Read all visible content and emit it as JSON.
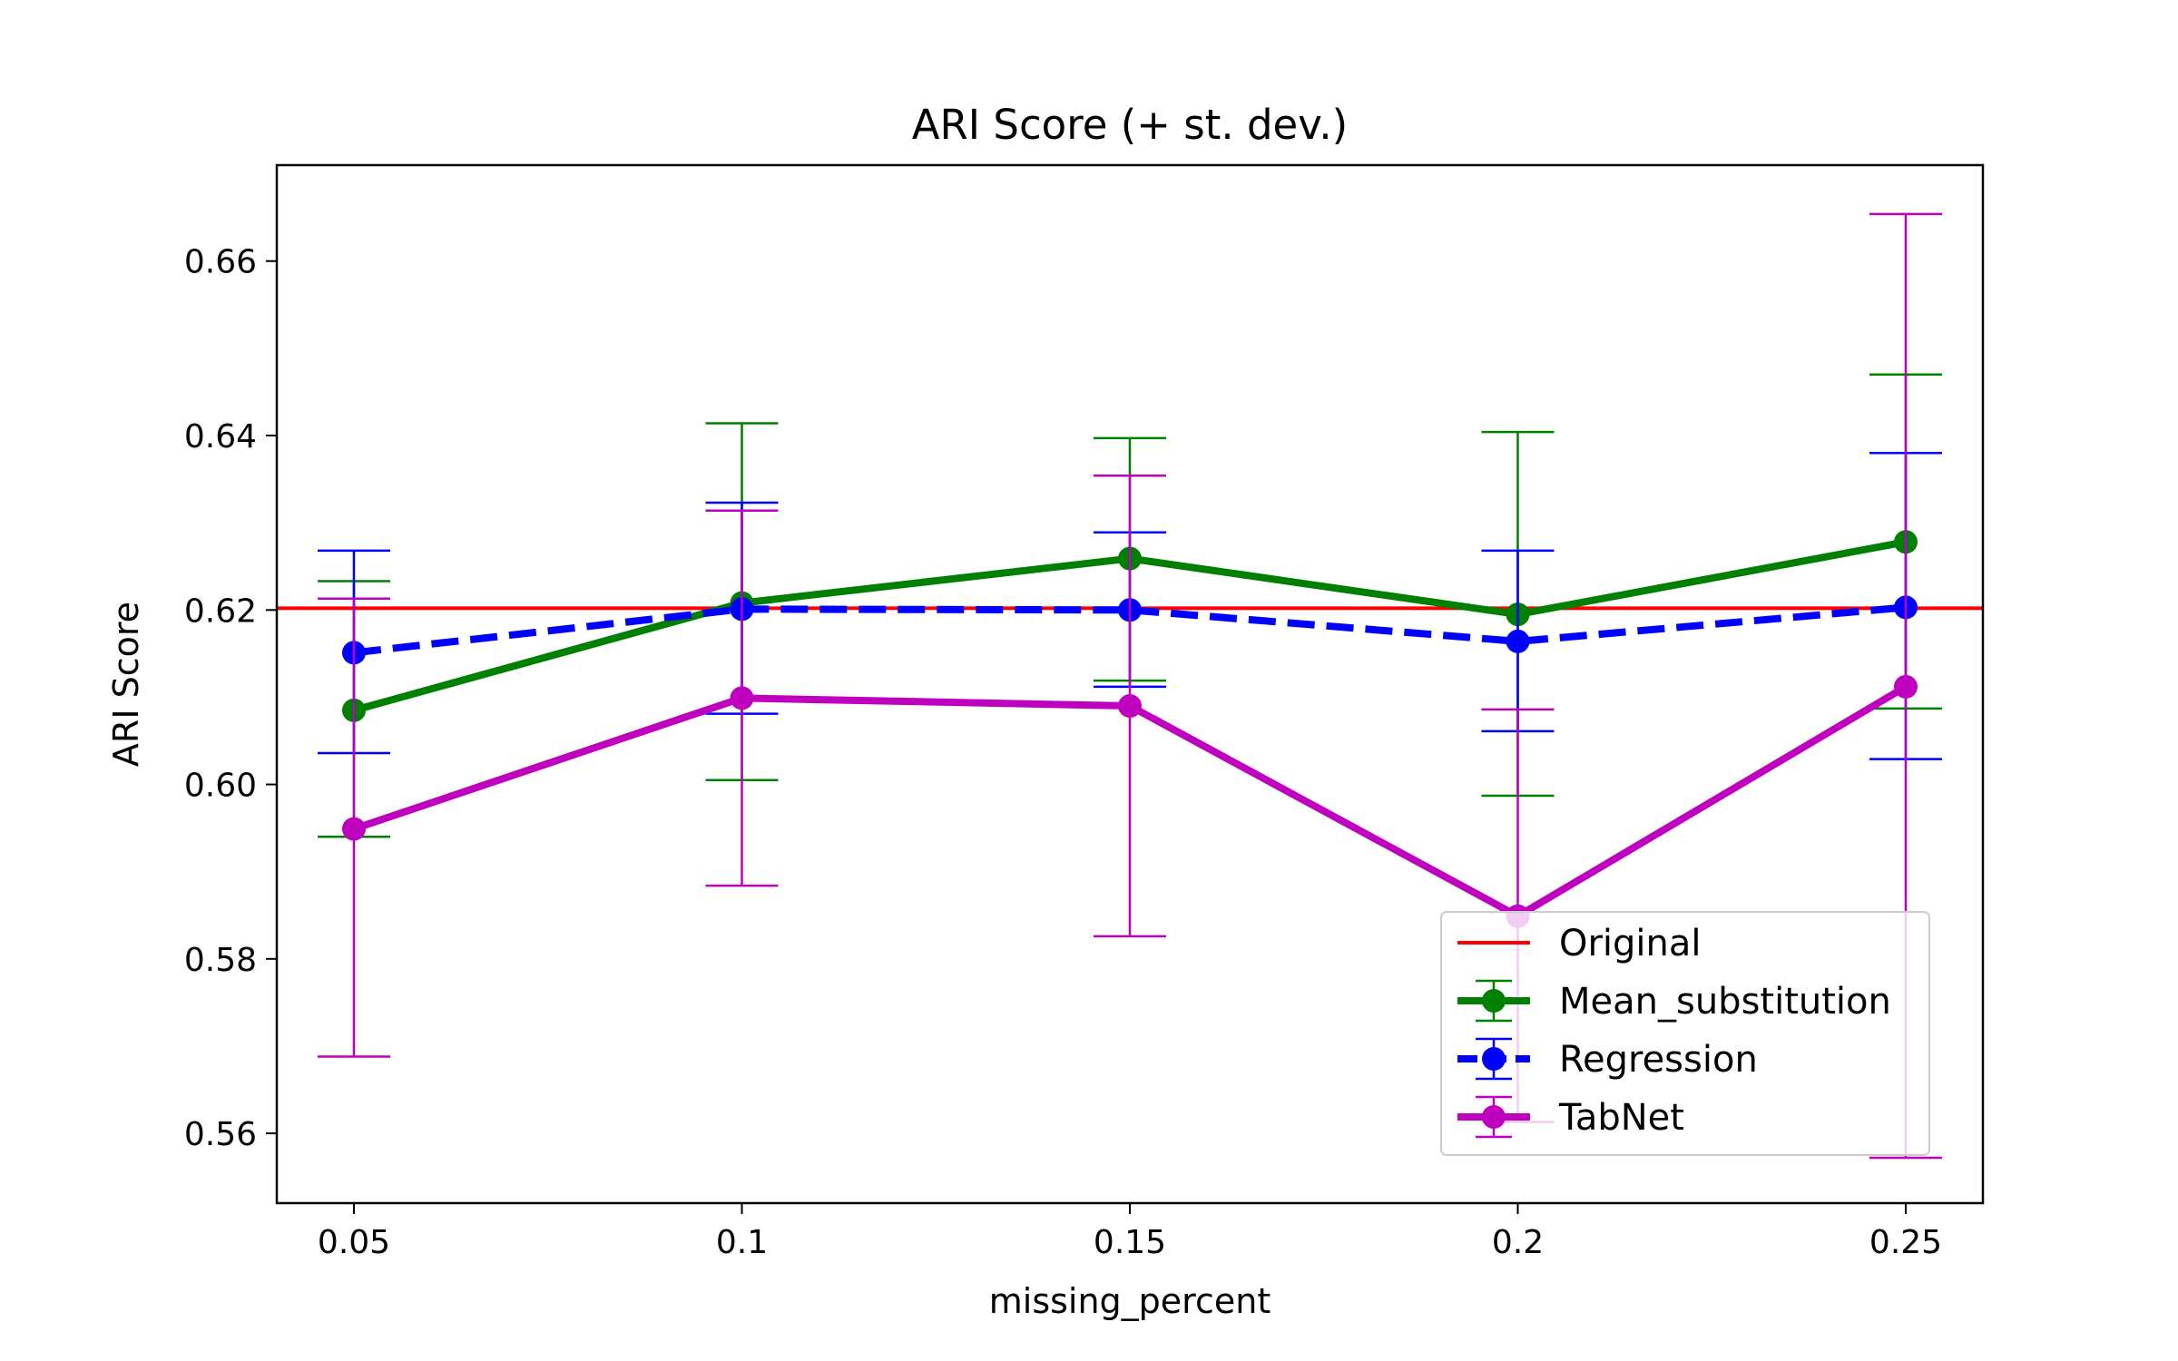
{
  "chart_data": {
    "type": "line",
    "title": "ARI Score (+ st. dev.)",
    "xlabel": "missing_percent",
    "ylabel": "ARI Score",
    "x": [
      0.05,
      0.1,
      0.15,
      0.2,
      0.25
    ],
    "x_tick_labels": [
      "0.05",
      "0.1",
      "0.15",
      "0.2",
      "0.25"
    ],
    "yticks": [
      0.56,
      0.58,
      0.6,
      0.62,
      0.64,
      0.66
    ],
    "y_tick_labels": [
      "0.56",
      "0.58",
      "0.60",
      "0.62",
      "0.64",
      "0.66"
    ],
    "ylim": [
      0.552,
      0.671
    ],
    "grid": false,
    "legend_position": "lower-right",
    "reference_line": {
      "name": "Original",
      "value": 0.6202,
      "color": "#ff0000"
    },
    "series": [
      {
        "name": "Mean_substitution",
        "color": "#008000",
        "line_style": "solid",
        "values": [
          0.6085,
          0.6208,
          0.6259,
          0.6195,
          0.6278
        ],
        "error_low": [
          0.594,
          0.6005,
          0.6119,
          0.5987,
          0.6087
        ],
        "error_high": [
          0.6233,
          0.6414,
          0.6397,
          0.6404,
          0.647
        ]
      },
      {
        "name": "Regression",
        "color": "#0000ff",
        "line_style": "dashed",
        "values": [
          0.6151,
          0.6201,
          0.62,
          0.6164,
          0.6203
        ],
        "error_low": [
          0.6036,
          0.6081,
          0.6112,
          0.6061,
          0.6029
        ],
        "error_high": [
          0.6268,
          0.6323,
          0.6289,
          0.6268,
          0.638
        ]
      },
      {
        "name": "TabNet",
        "color": "#bf00bf",
        "line_style": "solid",
        "values": [
          0.5949,
          0.6099,
          0.609,
          0.5849,
          0.6112
        ],
        "error_low": [
          0.5688,
          0.5884,
          0.5826,
          0.5613,
          0.5572
        ],
        "error_high": [
          0.6213,
          0.6314,
          0.6354,
          0.6086,
          0.6654
        ]
      }
    ]
  }
}
